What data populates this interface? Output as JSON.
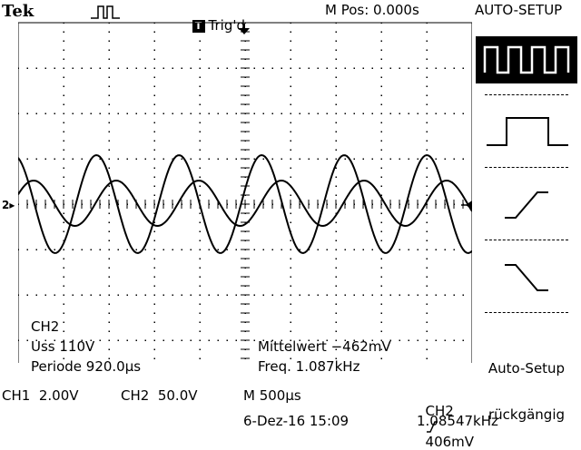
{
  "header": {
    "brand": "Tek",
    "trigger_box": "T",
    "trigger_status": "Trig'd",
    "m_pos": "M Pos: 0.000s",
    "menu_title": "AUTO-SETUP"
  },
  "menu": {
    "items": [
      {
        "icon": "square-wave-icon",
        "selected": true
      },
      {
        "icon": "single-pulse-icon",
        "selected": false
      },
      {
        "icon": "rising-edge-icon",
        "selected": false
      },
      {
        "icon": "falling-edge-icon",
        "selected": false
      }
    ],
    "undo_line1": "Auto-Setup",
    "undo_line2": "rückgängig"
  },
  "measurements": {
    "channel": "CH2",
    "vpp": "Uss 110V",
    "period": "Periode 920.0µs",
    "mean": "Mittelwert −462mV",
    "freq": "Freq. 1.087kHz"
  },
  "footer": {
    "ch1_scale": "CH1  2.00V",
    "ch2_scale": "CH2  50.0V",
    "timebase": "M 500µs",
    "trigger_source": "CH2",
    "trigger_level": "406mV",
    "date": "6-Dez-16 15:09",
    "counter": "1.08547kHz"
  },
  "channel_markers": {
    "ch_marker": "2",
    "ch_marker_arrow": "▸"
  },
  "colors": {
    "background": "#ffffff",
    "trace": "#000000"
  }
}
